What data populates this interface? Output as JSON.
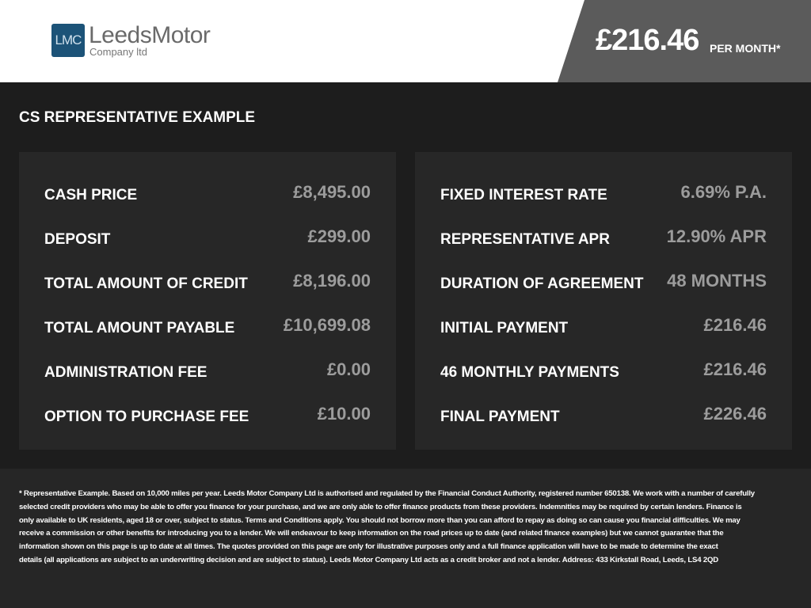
{
  "header": {
    "logo_mark": "LMC",
    "logo_name": "LeedsMotor",
    "logo_sub": "Company ltd",
    "price": "£216.46",
    "per_month": "PER MONTH*"
  },
  "colors": {
    "logo": "#1c5378",
    "price_bg": "#5b5b5b",
    "background": "#1d1d1d",
    "panel": "#272727",
    "value": "#9c9c9c"
  },
  "title": "CS REPRESENTATIVE EXAMPLE",
  "left": [
    {
      "label": "CASH PRICE",
      "value": "£8,495.00"
    },
    {
      "label": "DEPOSIT",
      "value": "£299.00"
    },
    {
      "label": "TOTAL AMOUNT OF CREDIT",
      "value": "£8,196.00"
    },
    {
      "label": "TOTAL AMOUNT PAYABLE",
      "value": "£10,699.08"
    },
    {
      "label": "ADMINISTRATION FEE",
      "value": "£0.00"
    },
    {
      "label": "OPTION TO PURCHASE FEE",
      "value": "£10.00"
    }
  ],
  "right": [
    {
      "label": "FIXED INTEREST RATE",
      "value": "6.69% P.A."
    },
    {
      "label": "REPRESENTATIVE APR",
      "value": "12.90% APR"
    },
    {
      "label": "DURATION OF AGREEMENT",
      "value": "48 MONTHS"
    },
    {
      "label": "INITIAL PAYMENT",
      "value": "£216.46"
    },
    {
      "label": "46 MONTHLY PAYMENTS",
      "value": "£216.46"
    },
    {
      "label": "FINAL PAYMENT",
      "value": "£226.46"
    }
  ],
  "disclaimer": [
    "* Representative Example. Based on 10,000 miles per year. Leeds Motor Company Ltd is authorised and regulated by the Financial Conduct Authority, registered number 650138. We work with a number of carefully",
    "selected credit providers who may be able to offer you finance for your purchase, and we are only able to offer finance products from these providers. Indemnities may be required by certain lenders. Finance is",
    "only available to UK residents, aged 18 or over, subject to status. Terms and Conditions apply. You should not borrow more than you can afford to repay as doing so can cause you financial difficulties. We may",
    "receive a commission or other benefits for introducing you to a lender. We will endeavour to keep information on the road prices up to date (and related finance examples) but we cannot guarantee that the",
    "information shown on this page is up to date at all times. The quotes provided on this page are only for illustrative purposes only and a full finance application will have to be made to determine the exact",
    "details (all applications are subject to an underwriting decision and are subject to status). Leeds Motor Company Ltd acts as a credit broker and not a lender. Address: 433 Kirkstall Road, Leeds, LS4 2QD"
  ]
}
